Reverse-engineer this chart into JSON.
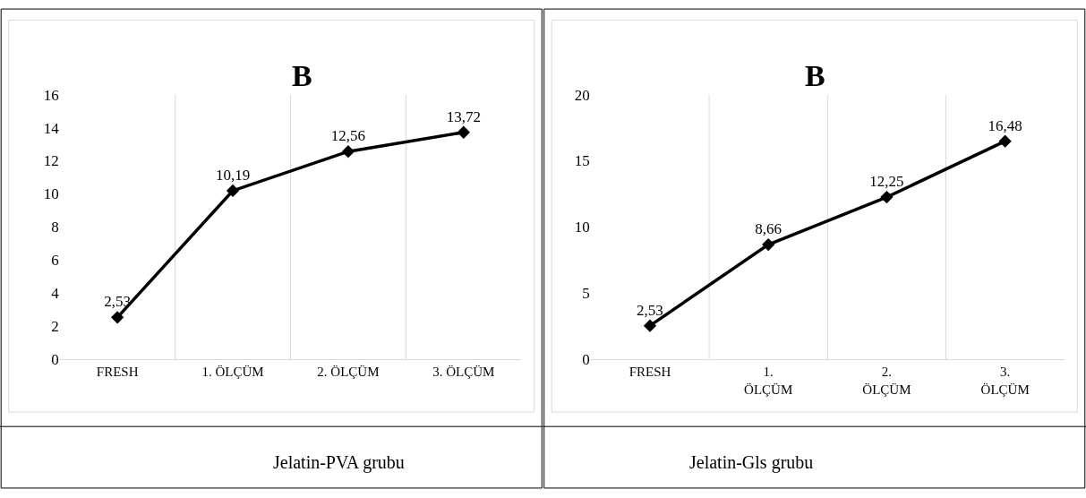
{
  "chart_data": [
    {
      "type": "line",
      "title": "B",
      "categories": [
        "FRESH",
        "1. ÖLÇÜM",
        "2. ÖLÇÜM",
        "3. ÖLÇÜM"
      ],
      "series": [
        {
          "color": "#000000",
          "values": [
            2.53,
            10.19,
            12.56,
            13.72
          ],
          "value_labels": [
            "2,53",
            "10,19",
            "12,56",
            "13,72"
          ]
        }
      ],
      "ylim": [
        0,
        16
      ],
      "yticks": [
        0,
        2,
        4,
        6,
        8,
        10,
        12,
        14,
        16
      ],
      "grid": "x",
      "marker": "diamond",
      "line_style": "solid",
      "annotations": [
        "Jelatin-PVA grubu"
      ]
    },
    {
      "type": "line",
      "title": "B",
      "categories": [
        "FRESH",
        "1.\nÖLÇÜM",
        "2.\nÖLÇÜM",
        "3.\nÖLÇÜM"
      ],
      "series": [
        {
          "color": "#000000",
          "values": [
            2.53,
            8.66,
            12.25,
            16.48
          ],
          "value_labels": [
            "2,53",
            "8,66",
            "12,25",
            "16,48"
          ]
        }
      ],
      "ylim": [
        0,
        20
      ],
      "yticks": [
        0,
        5,
        10,
        15,
        20
      ],
      "grid": "x",
      "marker": "diamond",
      "line_style": "solid",
      "annotations": [
        "Jelatin-Gls grubu"
      ]
    }
  ]
}
